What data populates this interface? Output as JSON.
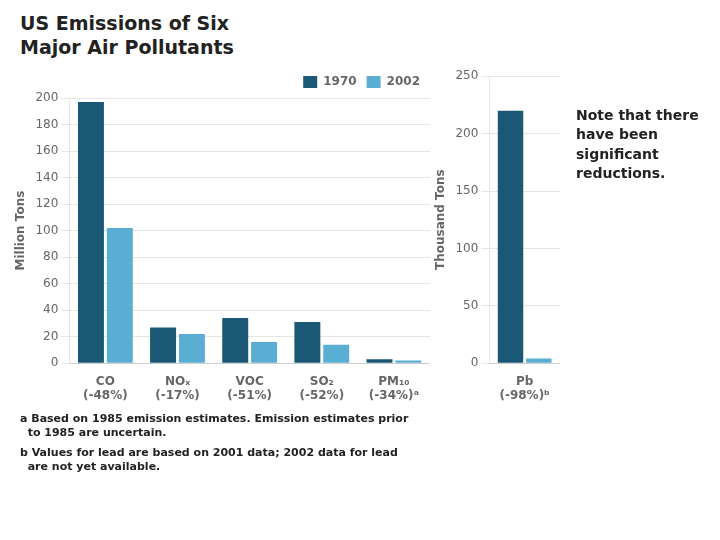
{
  "chart_data": [
    {
      "type": "bar",
      "title": "US Emissions of Six\nMajor Air Pollutants",
      "categories": [
        "CO",
        "NOₓ",
        "VOC",
        "SO₂",
        "PM₁₀"
      ],
      "series": [
        {
          "name": "1970",
          "color": "#1a5876",
          "values": [
            197,
            27,
            34,
            31,
            3
          ]
        },
        {
          "name": "2002",
          "color": "#5aaed4",
          "values": [
            102,
            22,
            16,
            14,
            2
          ]
        }
      ],
      "ylabel": "Million Tons",
      "ylim": [
        0,
        200
      ],
      "yticks": [
        0,
        20,
        40,
        60,
        80,
        100,
        120,
        140,
        160,
        180,
        200
      ],
      "grid": true,
      "legend": "upper right",
      "annotations": [
        {
          "text": "(-48%)",
          "category": "CO"
        },
        {
          "text": "(-17%)",
          "category": "NOₓ"
        },
        {
          "text": "(-51%)",
          "category": "VOC"
        },
        {
          "text": "(-52%)",
          "category": "SO₂"
        },
        {
          "text": "(-34%)ᵃ",
          "category": "PM₁₀"
        },
        {
          "text": "a Based on 1985 emission estimates. Emission estimates prior\n  to 1985 are uncertain."
        },
        {
          "text": "b Values for lead are based on 2001 data; 2002 data for lead\n  are not yet available."
        }
      ]
    },
    {
      "type": "bar",
      "categories": [
        "Pb"
      ],
      "series": [
        {
          "name": "1970",
          "color": "#1a5876",
          "values": [
            220
          ]
        },
        {
          "name": "2002",
          "color": "#5aaed4",
          "values": [
            4
          ]
        }
      ],
      "ylabel": "Thousand Tons",
      "ylim": [
        0,
        250
      ],
      "yticks": [
        0,
        50,
        100,
        150,
        200,
        250
      ],
      "grid": true,
      "annotations": [
        {
          "text": "(-98%)ᵇ",
          "category": "Pb"
        },
        {
          "text": "Note that there\nhave been\nsignificant\nreductions."
        }
      ]
    }
  ]
}
